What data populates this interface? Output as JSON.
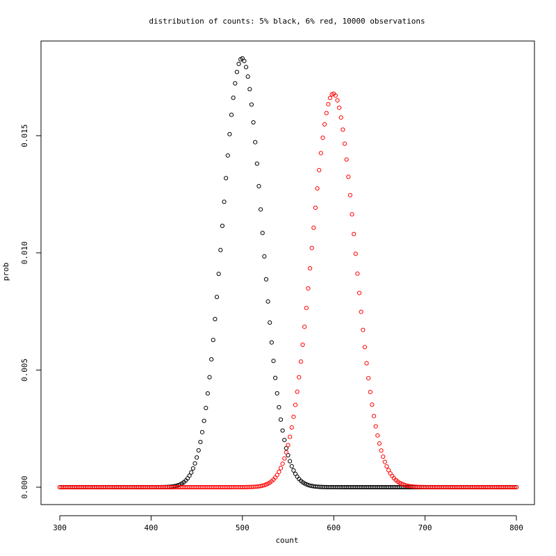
{
  "chart_data": {
    "type": "scatter",
    "title": "distribution of counts: 5% black, 6% red, 10000 observations",
    "xlabel": "count",
    "ylabel": "prob",
    "xlim": [
      300,
      800
    ],
    "ylim": [
      0,
      0.0183
    ],
    "x_ticks": [
      300,
      400,
      500,
      600,
      700,
      800
    ],
    "y_ticks": [
      0.0,
      0.005,
      0.01,
      0.015
    ],
    "x_tick_labels": [
      "300",
      "400",
      "500",
      "600",
      "700",
      "800"
    ],
    "y_tick_labels": [
      "0.000",
      "0.005",
      "0.010",
      "0.015"
    ],
    "grid": false,
    "legend": "none",
    "marker": "open-circle",
    "x_start": 300,
    "x_end": 800,
    "x_step": 2,
    "series": [
      {
        "color": "#000000",
        "n": 10000,
        "p": 0.05
      },
      {
        "color": "#ff0000",
        "n": 10000,
        "p": 0.06
      }
    ]
  }
}
